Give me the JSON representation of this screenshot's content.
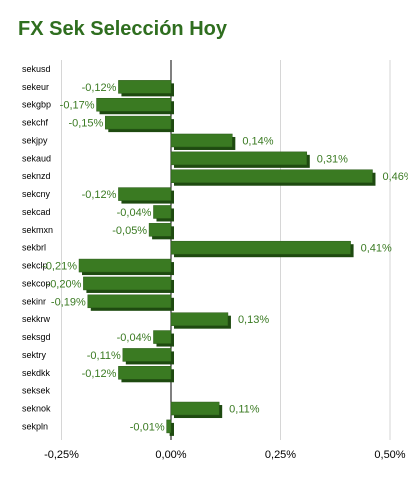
{
  "chart_data": {
    "type": "bar",
    "orientation": "horizontal",
    "title": "FX Sek Selección Hoy",
    "categories": [
      "sekusd",
      "sekeur",
      "sekgbp",
      "sekchf",
      "sekjpy",
      "sekaud",
      "seknzd",
      "sekcny",
      "sekcad",
      "sekmxn",
      "sekbrl",
      "sekclp",
      "sekcop",
      "sekinr",
      "sekkrw",
      "seksgd",
      "sektry",
      "sekdkk",
      "seksek",
      "seknok",
      "sekpln"
    ],
    "values": [
      0,
      -0.12,
      -0.17,
      -0.15,
      0.14,
      0.31,
      0.46,
      -0.12,
      -0.04,
      -0.05,
      0.41,
      -0.21,
      -0.2,
      -0.19,
      0.13,
      -0.04,
      -0.11,
      -0.12,
      0,
      0.11,
      -0.01
    ],
    "value_labels": [
      "",
      "-0,12%",
      "-0,17%",
      "-0,15%",
      "0,14%",
      "0,31%",
      "0,46%",
      "-0,12%",
      "-0,04%",
      "-0,05%",
      "0,41%",
      "-0,21%",
      "-0,20%",
      "-0,19%",
      "0,13%",
      "-0,04%",
      "-0,11%",
      "-0,12%",
      "",
      "0,11%",
      "-0,01%"
    ],
    "x_ticks": [
      -0.25,
      0,
      0.25,
      0.5
    ],
    "x_tick_labels": [
      "-0,25%",
      "0,00%",
      "0,25%",
      "0,50%"
    ],
    "xlim": [
      -0.25,
      0.5
    ],
    "grid": true,
    "bar_color": "#3a7a22",
    "bar_side_color": "#1e4a10",
    "title_color": "#2f6e1f"
  }
}
